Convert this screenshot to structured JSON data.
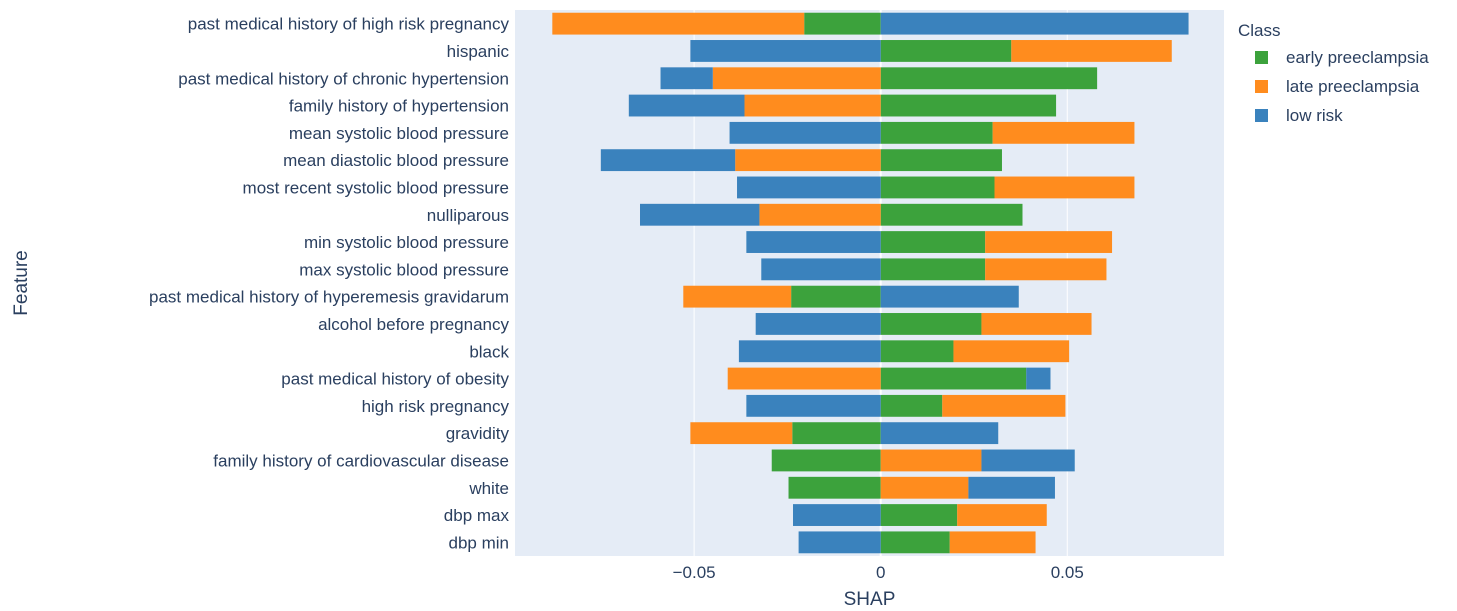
{
  "chart_data": {
    "type": "bar",
    "orientation": "horizontal",
    "barmode": "relative",
    "xlabel": "SHAP",
    "ylabel": "Feature",
    "xlim": [
      -0.098,
      0.092
    ],
    "xticks": [
      -0.05,
      0,
      0.05
    ],
    "xtick_labels": [
      "−0.05",
      "0",
      "0.05"
    ],
    "grid": true,
    "legend_title": "Class",
    "legend_position": "top-right",
    "categories": [
      "past medical history of high risk pregnancy",
      "hispanic",
      "past medical history of chronic hypertension",
      "family history of hypertension",
      "mean systolic blood pressure",
      "mean diastolic blood pressure",
      "most recent systolic blood pressure",
      "nulliparous",
      "min systolic blood pressure",
      "max systolic blood pressure",
      "past medical history of hyperemesis gravidarum",
      "alcohol before pregnancy",
      "black",
      "past medical history of obesity",
      "high risk pregnancy",
      "gravidity",
      "family history of cardiovascular disease",
      "white",
      "dbp max",
      "dbp min"
    ],
    "series": [
      {
        "name": "early preeclampsia",
        "color": "#3ca23c",
        "values": [
          -0.0205,
          0.035,
          0.058,
          0.047,
          0.03,
          0.0325,
          0.0305,
          0.038,
          0.028,
          0.028,
          -0.024,
          0.027,
          0.0195,
          0.039,
          0.0165,
          -0.0237,
          -0.0292,
          -0.0247,
          0.0205,
          0.0185
        ]
      },
      {
        "name": "late preeclampsia",
        "color": "#ff8c1e",
        "values": [
          -0.0675,
          0.043,
          -0.045,
          -0.0365,
          0.038,
          -0.039,
          0.0375,
          -0.0325,
          0.034,
          0.0325,
          -0.0289,
          0.0295,
          0.031,
          -0.041,
          0.033,
          -0.0273,
          0.027,
          0.0235,
          0.024,
          0.023
        ]
      },
      {
        "name": "low risk",
        "color": "#3a82bd",
        "values": [
          0.0825,
          -0.051,
          -0.014,
          -0.031,
          -0.0405,
          -0.036,
          -0.0385,
          -0.032,
          -0.036,
          -0.032,
          0.037,
          -0.0335,
          -0.038,
          0.0065,
          -0.036,
          0.0315,
          0.025,
          0.0232,
          -0.0235,
          -0.022
        ]
      }
    ]
  }
}
